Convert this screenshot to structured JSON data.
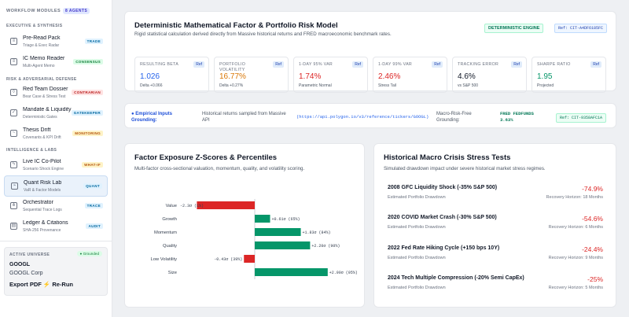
{
  "sidebar": {
    "heading": "WORKFLOW MODULES",
    "agents_badge": "8 AGENTS",
    "sections": [
      "EXECUTIVE & SYNTHESIS",
      "RISK & ADVERSARIAL DEFENSE",
      "INTELLIGENCE & LABS"
    ],
    "items": [
      {
        "title": "Pre-Read Pack",
        "sub": "Triage & Exec Radar",
        "tag": "TRADE",
        "icon": "document-icon"
      },
      {
        "title": "IC Memo Reader",
        "sub": "Multi-Agent Memo",
        "tag": "CONSENSUS",
        "icon": "document-icon"
      },
      {
        "title": "Red Team Dossier",
        "sub": "Bear Case & Stress Test",
        "tag": "CONTRARIAN",
        "icon": "shield-icon"
      },
      {
        "title": "Mandate & Liquidity",
        "sub": "Deterministic Gates",
        "tag": "GATEKEEPER",
        "icon": "check-icon"
      },
      {
        "title": "Thesis Drift",
        "sub": "Covenants & KPI Drift",
        "tag": "MONITORING",
        "icon": "chart-icon"
      },
      {
        "title": "Live IC Co-Pilot",
        "sub": "Scenario Shock Engine",
        "tag": "WHAT-IF",
        "icon": "bolt-icon"
      },
      {
        "title": "Quant Risk Lab",
        "sub": "VaR & Factor Models",
        "tag": "QUANT",
        "icon": "chart-icon"
      },
      {
        "title": "Orchestrator",
        "sub": "Sequential Trace Logs",
        "tag": "TRACE",
        "icon": "network-icon"
      },
      {
        "title": "Ledger & Citations",
        "sub": "SHA-256 Provenance",
        "tag": "AUDIT",
        "icon": "ledger-icon"
      }
    ],
    "universe": {
      "label": "ACTIVE UNIVERSE",
      "status": "● Grounded",
      "ticker": "GOOGL",
      "name": "GOOGL Corp",
      "actions": "Export PDF ⚡ Re-Run"
    }
  },
  "risk_model": {
    "title": "Deterministic Mathematical Factor & Portfolio Risk Model",
    "subtitle": "Rigid statistical calculation derived directly from Massive historical returns and FRED macroeconomic benchmark rates.",
    "engine_badge": "DETERMINISTIC ENGINE",
    "ref_badge": "Ref: CIT-A4DF6185FC",
    "metrics": [
      {
        "label": "RESULTING BETA",
        "value": "1.026",
        "sub": "Delta +0.066",
        "color": "#2563eb",
        "ref": "Ref"
      },
      {
        "label": "PORTFOLIO VOLATILITY",
        "value": "16.77%",
        "sub": "Delta +0.27%",
        "color": "#d97706",
        "ref": "Ref"
      },
      {
        "label": "1-DAY 95% VAR",
        "value": "1.74%",
        "sub": "Parametric Normal",
        "color": "#dc2626",
        "ref": "Ref"
      },
      {
        "label": "1-DAY 99% VAR",
        "value": "2.46%",
        "sub": "Stress Tail",
        "color": "#dc2626",
        "ref": "Ref"
      },
      {
        "label": "TRACKING ERROR",
        "value": "4.6%",
        "sub": "vs S&P 500",
        "color": "#111827",
        "ref": "Ref"
      },
      {
        "label": "SHARPE RATIO",
        "value": "1.95",
        "sub": "Projected",
        "color": "#059669",
        "ref": "Ref"
      }
    ]
  },
  "grounding": {
    "label": "● Empirical Inputs Grounding:",
    "desc": "Historical returns sampled from Massive API",
    "url": "(https://api.polygon.io/v3/reference/tickers/GOOGL)",
    "macro_label": "Macro-Risk-Free Grounding:",
    "macro_value": "FRED FEDFUNDS 3.63%",
    "ref": "Ref: CIT-9358AFC1A"
  },
  "factors": {
    "title": "Factor Exposure Z-Scores & Percentiles",
    "subtitle": "Multi-factor cross-sectional valuation, momentum, quality, and volatility scoring.",
    "chart_data": {
      "type": "bar",
      "orientation": "horizontal",
      "categories": [
        "Value",
        "Growth",
        "Momentum",
        "Quality",
        "Low Volatility",
        "Size"
      ],
      "values": [
        -2.3,
        0.61,
        1.83,
        2.2,
        -0.43,
        2.9
      ],
      "labels": [
        "-2.3σ (1%)",
        "+0.61σ (65%)",
        "+1.83σ (84%)",
        "+2.20σ (90%)",
        "-0.43σ (39%)",
        "+2.90σ (95%)"
      ],
      "colors": [
        "#dc2626",
        "#059669",
        "#059669",
        "#059669",
        "#dc2626",
        "#059669"
      ]
    }
  },
  "stress": {
    "title": "Historical Macro Crisis Stress Tests",
    "subtitle": "Simulated drawdown impact under severe historical market stress regimes.",
    "scenarios": [
      {
        "name": "2008 GFC Liquidity Shock (-35% S&P 500)",
        "value": "-74.9%",
        "label": "Estimated Portfolio Drawdown",
        "recovery": "Recovery Horizon: 18 Months"
      },
      {
        "name": "2020 COVID Market Crash (-30% S&P 500)",
        "value": "-54.6%",
        "label": "Estimated Portfolio Drawdown",
        "recovery": "Recovery Horizon: 6 Months"
      },
      {
        "name": "2022 Fed Rate Hiking Cycle (+150 bps 10Y)",
        "value": "-24.4%",
        "label": "Estimated Portfolio Drawdown",
        "recovery": "Recovery Horizon: 9 Months"
      },
      {
        "name": "2024 Tech Multiple Compression (-20% Semi CapEx)",
        "value": "-25%",
        "label": "Estimated Portfolio Drawdown",
        "recovery": "Recovery Horizon: 5 Months"
      }
    ]
  }
}
